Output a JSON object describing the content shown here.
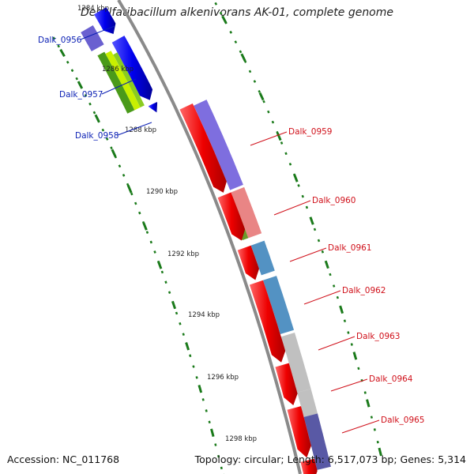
{
  "title": "Desulfatibacillum alkenivorans AK-01, complete genome",
  "footer": {
    "accession": "Accession: NC_011768",
    "topology": "Topology: circular; Length: 6,517,073 bp; Genes: 5,314"
  },
  "scale_labels": [
    "1284 kbp",
    "1286 kbp",
    "1288 kbp",
    "1290 kbp",
    "1292 kbp",
    "1294 kbp",
    "1296 kbp",
    "1298 kbp"
  ],
  "colors": {
    "label_left": "#0a1fb4",
    "label_right": "#d0101a",
    "backbone": "#8a8a8a",
    "tick": "#1a7a1a",
    "forward_arrow": "#0000ee",
    "reverse_arrow": "#ee0000",
    "gc_green": "#4a9a1a",
    "gc_lime": "#c8f000"
  },
  "genes_left": [
    {
      "label": "Dalk_0956",
      "color": "#6a60d0"
    },
    {
      "label": "Dalk_0957",
      "color": "#2e9b2a"
    },
    {
      "label": "Dalk_0958",
      "color": "#b8e830"
    }
  ],
  "genes_right": [
    {
      "label": "Dalk_0959",
      "color": "#7766dd"
    },
    {
      "label": "Dalk_0960",
      "color": "#e87e7e"
    },
    {
      "label": "Dalk_0961",
      "color": "#4a8cc0"
    },
    {
      "label": "Dalk_0962",
      "color": "#4a8cc0"
    },
    {
      "label": "Dalk_0963",
      "color": "#bdbdbd"
    },
    {
      "label": "Dalk_0964",
      "color": "#bdbdbd"
    },
    {
      "label": "Dalk_0965",
      "color": "#5050a0"
    }
  ]
}
